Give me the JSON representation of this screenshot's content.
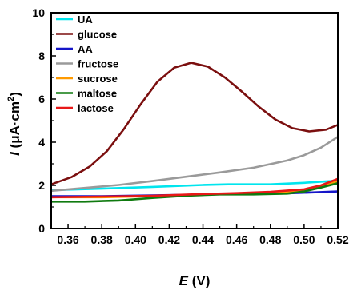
{
  "chart_data": {
    "type": "line",
    "title": "",
    "xlabel": "E (V)",
    "ylabel": "I (μA·cm²)",
    "xlabel_parts": {
      "var": "E",
      "unit": " (V)"
    },
    "ylabel_parts": {
      "var": "I",
      "unit": " (μA·cm",
      "sup": "2",
      "close": ")"
    },
    "xlim": [
      0.35,
      0.52
    ],
    "ylim": [
      0,
      10
    ],
    "x_ticks": [
      0.36,
      0.38,
      0.4,
      0.42,
      0.44,
      0.46,
      0.48,
      0.5,
      0.52
    ],
    "x_tick_labels": [
      "0.36",
      "0.38",
      "0.40",
      "0.42",
      "0.44",
      "0.46",
      "0.48",
      "0.50",
      "0.52"
    ],
    "y_ticks": [
      0,
      2,
      4,
      6,
      8,
      10
    ],
    "y_tick_labels": [
      "0",
      "2",
      "4",
      "6",
      "8",
      "10"
    ],
    "grid": false,
    "legend_position": "top-left",
    "series": [
      {
        "name": "UA",
        "color": "#00e5ee",
        "x": [
          0.35,
          0.38,
          0.41,
          0.44,
          0.455,
          0.48,
          0.5,
          0.52
        ],
        "y": [
          1.78,
          1.85,
          1.93,
          2.02,
          2.05,
          2.05,
          2.12,
          2.22
        ]
      },
      {
        "name": "glucose",
        "color": "#7b0f0f",
        "x": [
          0.35,
          0.362,
          0.373,
          0.383,
          0.393,
          0.403,
          0.413,
          0.423,
          0.433,
          0.443,
          0.453,
          0.463,
          0.473,
          0.483,
          0.493,
          0.503,
          0.513,
          0.52
        ],
        "y": [
          2.05,
          2.38,
          2.88,
          3.58,
          4.6,
          5.75,
          6.8,
          7.45,
          7.68,
          7.5,
          7.0,
          6.35,
          5.65,
          5.05,
          4.65,
          4.5,
          4.58,
          4.8
        ]
      },
      {
        "name": "AA",
        "color": "#1515c8",
        "x": [
          0.35,
          0.38,
          0.42,
          0.46,
          0.49,
          0.52
        ],
        "y": [
          1.5,
          1.5,
          1.55,
          1.6,
          1.63,
          1.72
        ]
      },
      {
        "name": "fructose",
        "color": "#9a9a9a",
        "x": [
          0.35,
          0.37,
          0.39,
          0.41,
          0.43,
          0.45,
          0.47,
          0.49,
          0.5,
          0.51,
          0.52
        ],
        "y": [
          1.75,
          1.88,
          2.02,
          2.2,
          2.4,
          2.6,
          2.82,
          3.15,
          3.4,
          3.75,
          4.25
        ]
      },
      {
        "name": "sucrose",
        "color": "#ff9a00",
        "x": [
          0.35,
          0.38,
          0.41,
          0.44,
          0.46,
          0.48,
          0.5,
          0.51,
          0.52
        ],
        "y": [
          1.45,
          1.45,
          1.5,
          1.58,
          1.62,
          1.65,
          1.75,
          1.95,
          2.2
        ]
      },
      {
        "name": "maltose",
        "color": "#0f7a0f",
        "x": [
          0.35,
          0.37,
          0.39,
          0.41,
          0.43,
          0.45,
          0.47,
          0.49,
          0.5,
          0.51,
          0.52
        ],
        "y": [
          1.25,
          1.25,
          1.3,
          1.42,
          1.52,
          1.58,
          1.58,
          1.62,
          1.72,
          1.9,
          2.1
        ]
      },
      {
        "name": "lactose",
        "color": "#e81818",
        "x": [
          0.35,
          0.38,
          0.41,
          0.44,
          0.46,
          0.48,
          0.5,
          0.51,
          0.52
        ],
        "y": [
          1.45,
          1.48,
          1.52,
          1.6,
          1.64,
          1.7,
          1.82,
          2.0,
          2.3
        ]
      }
    ]
  }
}
